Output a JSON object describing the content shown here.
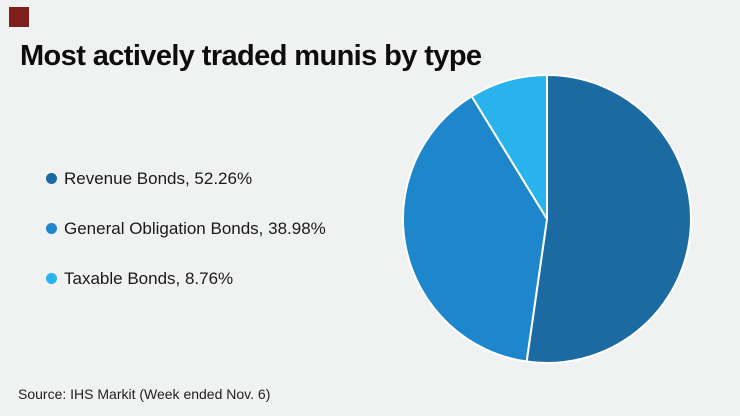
{
  "page": {
    "background_color": "#f0f1f1",
    "brand_color": "#7e1f1c"
  },
  "title": "Most actively traded munis by type",
  "source": "Source: IHS Markit (Week ended Nov. 6)",
  "legend": {
    "items": [
      {
        "label": "Revenue Bonds, 52.26%",
        "color": "#1b6aa2"
      },
      {
        "label": "General Obligation Bonds, 38.98%",
        "color": "#1e86cb"
      },
      {
        "label": "Taxable Bonds, 8.76%",
        "color": "#28b3ec"
      }
    ]
  },
  "chart_data": {
    "type": "pie",
    "title": "Most actively traded munis by type",
    "series": [
      {
        "name": "Revenue Bonds",
        "value": 52.26,
        "color": "#1b6aa2"
      },
      {
        "name": "General Obligation Bonds",
        "value": 38.98,
        "color": "#1e86cb"
      },
      {
        "name": "Taxable Bonds",
        "value": 8.76,
        "color": "#28b3ec"
      }
    ],
    "start_angle_deg": 0,
    "start_position": "top",
    "direction": "clockwise",
    "slice_border_color": "#ffffff",
    "slice_border_width": 2,
    "legend_position": "left",
    "source": "Source: IHS Markit (Week ended Nov. 6)"
  }
}
